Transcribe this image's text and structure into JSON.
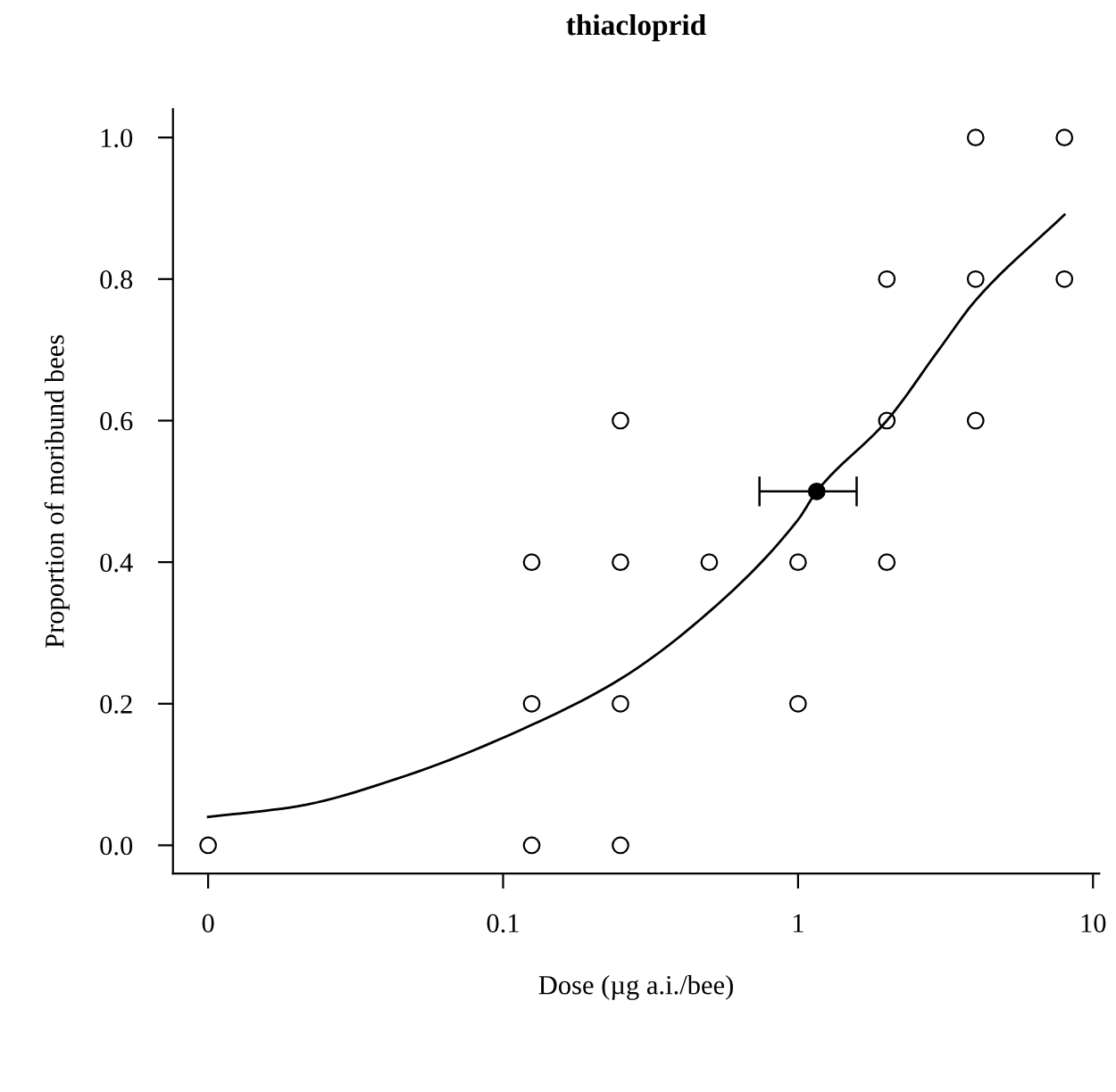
{
  "chart_data": {
    "type": "scatter",
    "title": "thiacloprid",
    "xlabel": "Dose (µg a.i./bee)",
    "ylabel": "Proportion of moribund bees",
    "log": "x",
    "xlim": [
      0.0076,
      10.5
    ],
    "ylim": [
      -0.04,
      1.04
    ],
    "xticks": [
      {
        "value": 0.01,
        "label": "0"
      },
      0.1,
      1,
      10
    ],
    "yticks": [
      {
        "value": 0.0,
        "label": "0.0"
      },
      {
        "value": 0.2,
        "label": "0.2"
      },
      {
        "value": 0.4,
        "label": "0.4"
      },
      {
        "value": 0.6,
        "label": "0.6"
      },
      {
        "value": 0.8,
        "label": "0.8"
      },
      {
        "value": 1.0,
        "label": "1.0"
      }
    ],
    "grid": false,
    "series": [
      {
        "marker": "circle",
        "color": "#000000",
        "x": [
          0.01,
          0.125,
          0.125,
          0.125,
          0.25,
          0.25,
          0.25,
          0.25,
          0.5,
          1,
          1,
          2,
          2,
          2,
          4,
          4,
          4,
          8,
          8
        ],
        "values": [
          0,
          0,
          0.2,
          0.4,
          0,
          0.2,
          0.4,
          0.6,
          0.4,
          0.2,
          0.4,
          0.4,
          0.6,
          0.8,
          0.6,
          0.8,
          1.0,
          0.8,
          1.0
        ]
      },
      {
        "type": "line",
        "color": "#000000",
        "line_style": "solid",
        "marker": "none",
        "x": [
          0.01,
          0.02,
          0.0466,
          0.125,
          0.25,
          0.5,
          1,
          1.157,
          2,
          3,
          4,
          8
        ],
        "values": [
          0.04,
          0.055,
          0.098,
          0.17,
          0.235,
          0.33,
          0.46,
          0.5,
          0.6,
          0.7,
          0.77,
          0.891
        ]
      },
      {
        "type": "scatter",
        "marker": "circle",
        "color": "#000000",
        "x": [
          1.157
        ],
        "values": [
          0.5
        ],
        "xerrors": [
          [
            0.74,
            1.58
          ]
        ]
      }
    ]
  }
}
